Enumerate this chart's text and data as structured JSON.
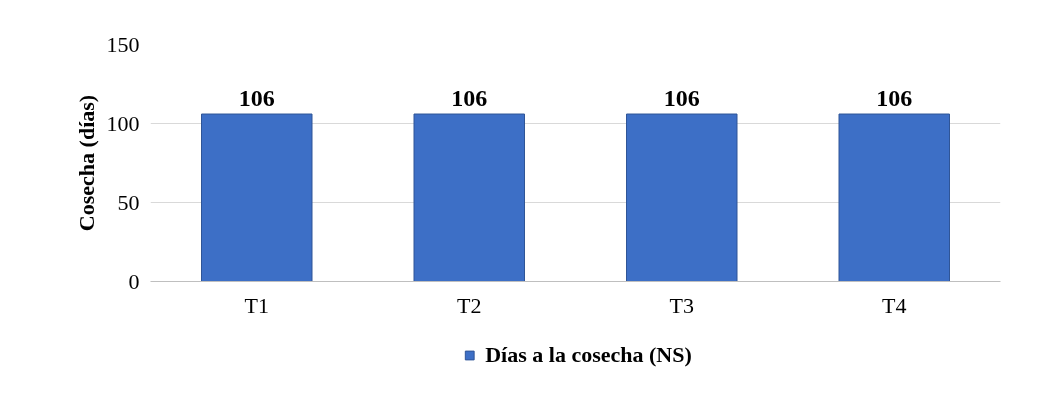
{
  "chart_data": {
    "type": "bar",
    "ylabel": "Cosecha (días)",
    "categories": [
      "T1",
      "T2",
      "T3",
      "T4"
    ],
    "series": [
      {
        "name": "Días a la cosecha (NS)",
        "color": "#3d6fc6",
        "values": [
          106,
          106,
          106,
          106
        ]
      }
    ],
    "ylim": [
      0,
      150
    ],
    "yticks": [
      0,
      50,
      100,
      150
    ],
    "grid": "y",
    "legend": "bottom",
    "data_labels": true
  }
}
